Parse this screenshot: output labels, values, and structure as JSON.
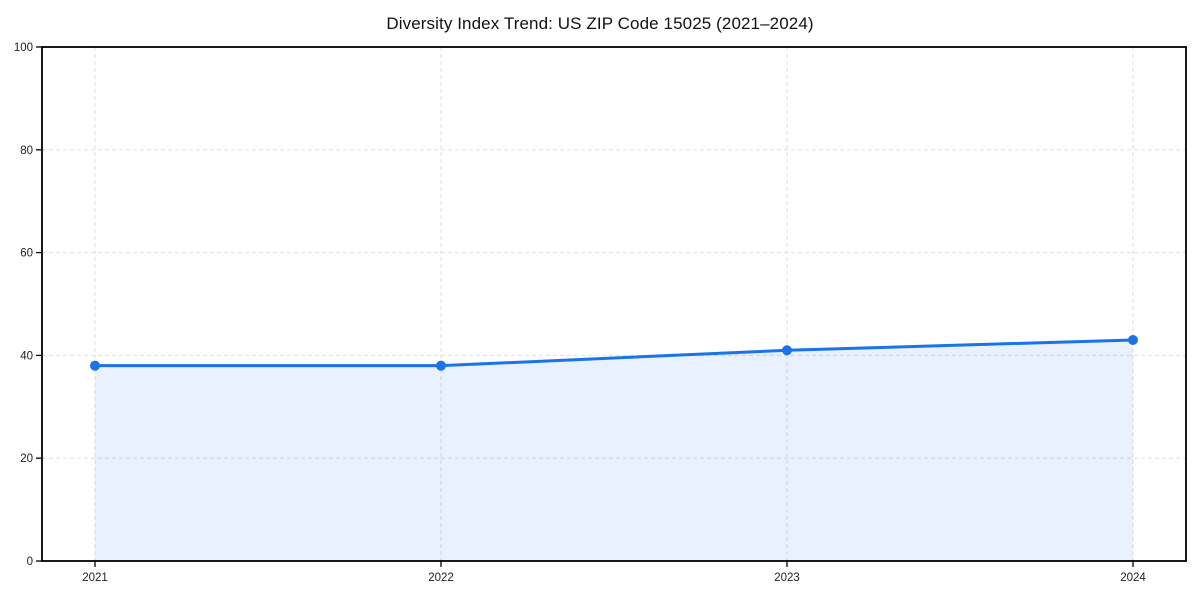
{
  "chart_data": {
    "type": "area",
    "title": "Diversity Index Trend: US ZIP Code 15025 (2021–2024)",
    "categories": [
      "2021",
      "2022",
      "2023",
      "2024"
    ],
    "values": [
      38,
      38,
      41,
      43
    ],
    "xlabel": "",
    "ylabel": "",
    "ylim": [
      0,
      100
    ],
    "yticks": [
      0,
      20,
      40,
      60,
      80,
      100
    ],
    "grid": "dashed-both-axes",
    "legend_position": "none",
    "colors": {
      "line": "#1a73e8",
      "marker": "#1a73e8",
      "fill": "#1a73e8",
      "fill_opacity": 0.1,
      "gridline": "#dedede",
      "spine": "#000000",
      "tick_text": "#222222",
      "background": "#ffffff"
    }
  }
}
